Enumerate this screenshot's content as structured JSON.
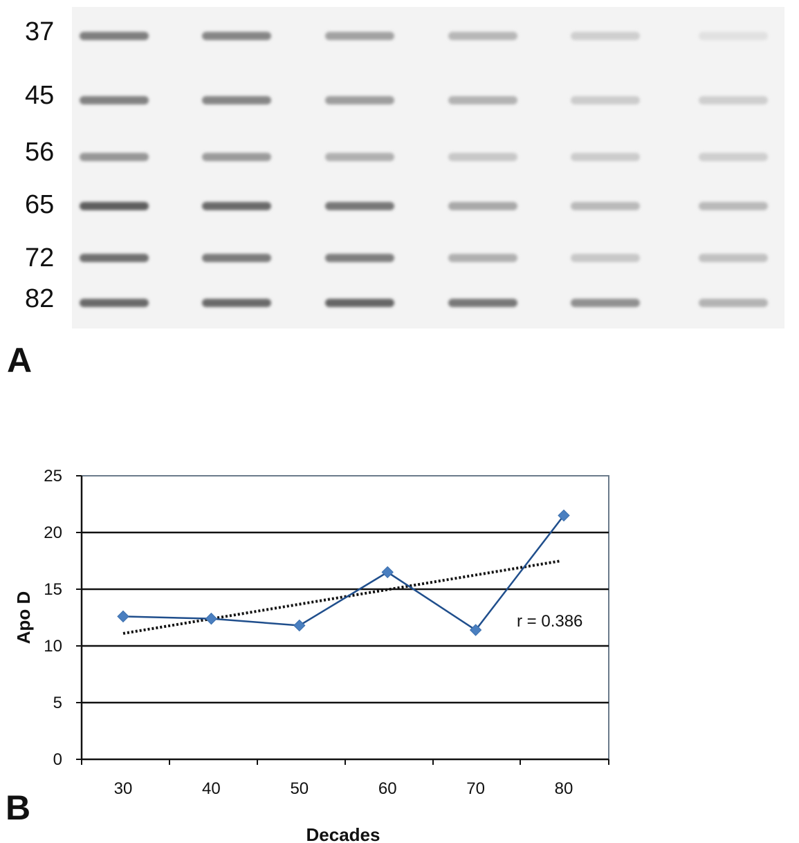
{
  "panels": {
    "a_label": "A",
    "b_label": "B"
  },
  "blot": {
    "row_labels": [
      "37",
      "45",
      "56",
      "65",
      "72",
      "82"
    ],
    "lanes": 6,
    "band_intensity": [
      [
        0.62,
        0.58,
        0.42,
        0.3,
        0.16,
        0.06
      ],
      [
        0.6,
        0.58,
        0.44,
        0.32,
        0.18,
        0.16
      ],
      [
        0.48,
        0.46,
        0.34,
        0.2,
        0.18,
        0.16
      ],
      [
        0.8,
        0.74,
        0.66,
        0.38,
        0.28,
        0.28
      ],
      [
        0.7,
        0.64,
        0.62,
        0.34,
        0.2,
        0.24
      ],
      [
        0.74,
        0.74,
        0.76,
        0.66,
        0.52,
        0.32
      ]
    ]
  },
  "chart_data": {
    "type": "line",
    "title": "",
    "xlabel": "Decades",
    "ylabel": "Apo D",
    "categories": [
      "30",
      "40",
      "50",
      "60",
      "70",
      "80"
    ],
    "series": [
      {
        "values": [
          12.6,
          12.4,
          11.8,
          16.5,
          11.4,
          21.5
        ],
        "color": "#1f4e8c",
        "marker_color": "#4a7fc0"
      }
    ],
    "trendline": {
      "style": "dotted",
      "color": "#111111",
      "start": 11.1,
      "end": 17.5
    },
    "ylim": [
      0,
      25
    ],
    "yticks": [
      0,
      5,
      10,
      15,
      20,
      25
    ],
    "gridlines": [
      5,
      10,
      15,
      20
    ],
    "annotation": "r = 0.386"
  }
}
